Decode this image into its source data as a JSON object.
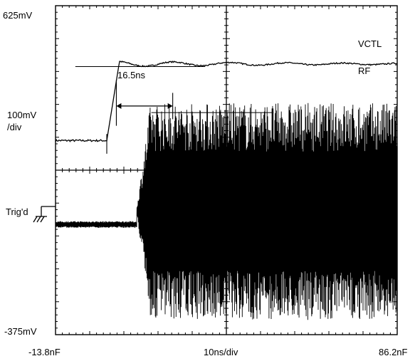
{
  "labels": {
    "y_top": "625mV",
    "y_scale_line1": "100mV",
    "y_scale_line2": "/div",
    "trigger": "Trig'd",
    "y_bottom": "-375mV",
    "x_left": "-13.8nF",
    "x_scale": "10ns/div",
    "x_right": "86.2nF",
    "ch_vctl": "VCTL",
    "ch_rf": "RF",
    "delay": "16.5ns"
  },
  "chart_data": {
    "type": "line",
    "title": "",
    "xlabel": "10ns/div",
    "ylabel": "100mV /div",
    "xlim": [
      -13.8,
      86.2
    ],
    "ylim": [
      -375,
      625
    ],
    "x_unit": "ns",
    "y_unit": "mV",
    "divisions": {
      "x": 10,
      "y": 10
    },
    "grid": "center crosshair with minor ticks",
    "series": [
      {
        "name": "VCTL",
        "description": "control voltage step",
        "low_mV": 215,
        "high_mV": 448,
        "rise_start_ns": 1.2,
        "rise_end_ns": 4.8
      },
      {
        "name": "RF",
        "description": "RF burst envelope",
        "baseline_mV": -40,
        "idle_ripple_mV": 10,
        "burst_start_ns": 10.0,
        "full_amplitude_ns": 14.0,
        "envelope_top_mV": 330,
        "envelope_bottom_mV": -330
      }
    ],
    "annotations": [
      {
        "text": "16.5ns",
        "from_ns": 4.0,
        "to_ns": 20.5,
        "y_mV": 320
      }
    ]
  }
}
